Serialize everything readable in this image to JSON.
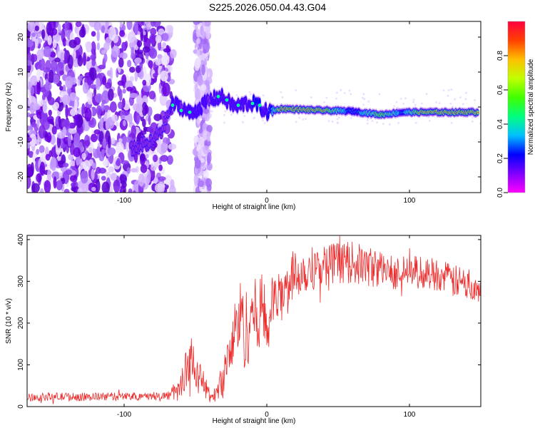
{
  "figure": {
    "title": "S225.2026.050.04.43.G04"
  },
  "colors": {
    "snr_line": "#ee2b2b",
    "axis": "#000000",
    "background": "#ffffff",
    "colormap": [
      "#ffffff",
      "#f0e0ff",
      "#c89cff",
      "#8a2be2",
      "#4b00ff",
      "#0000ff",
      "#00c8ff",
      "#00ff80",
      "#c8ff00",
      "#ffd000",
      "#ff4040",
      "#ff0060"
    ]
  },
  "chart_data": [
    {
      "type": "heatmap",
      "title": "S225.2026.050.04.43.G04",
      "xlabel": "Height of straight line (km)",
      "ylabel": "Frequency (Hz)",
      "xlim": [
        -168,
        150
      ],
      "ylim": [
        -24.5,
        24.5
      ],
      "xticks": [
        -100,
        0,
        100
      ],
      "xtick_labels": [
        "-100",
        "0",
        "100"
      ],
      "yticks": [
        -20,
        -10,
        0,
        10,
        20
      ],
      "ytick_labels": [
        "-20",
        "-10",
        "0",
        "10",
        "20"
      ],
      "colorbar": {
        "label": "Normalized spectral amplitude",
        "range": [
          0.0,
          1.0
        ],
        "ticks": [
          0.0,
          0.2,
          0.4,
          0.6,
          0.8
        ],
        "tick_labels": [
          "0.0",
          "0.2",
          "0.4",
          "0.6",
          "0.8"
        ]
      },
      "ridge_points": [
        {
          "x": -95,
          "y": -12,
          "amp": 0.3
        },
        {
          "x": -80,
          "y": -10,
          "amp": 0.25
        },
        {
          "x": -72,
          "y": -5,
          "amp": 0.2
        },
        {
          "x": -66,
          "y": 1,
          "amp": 0.35
        },
        {
          "x": -60,
          "y": 0,
          "amp": 0.3
        },
        {
          "x": -53,
          "y": -2,
          "amp": 0.35
        },
        {
          "x": -40,
          "y": 2,
          "amp": 0.3
        },
        {
          "x": -32,
          "y": 3,
          "amp": 0.45
        },
        {
          "x": -22,
          "y": 0,
          "amp": 0.35
        },
        {
          "x": -15,
          "y": 1,
          "amp": 0.4
        },
        {
          "x": -8,
          "y": 1,
          "amp": 0.5
        },
        {
          "x": 0,
          "y": -1.5,
          "amp": 0.45
        },
        {
          "x": 10,
          "y": -0.5,
          "amp": 0.95
        },
        {
          "x": 40,
          "y": -1,
          "amp": 0.9
        },
        {
          "x": 60,
          "y": -1.2,
          "amp": 0.55
        },
        {
          "x": 80,
          "y": -2.2,
          "amp": 0.85
        },
        {
          "x": 95,
          "y": -1.5,
          "amp": 0.6
        },
        {
          "x": 110,
          "y": -1.5,
          "amp": 0.95
        },
        {
          "x": 148,
          "y": -1.5,
          "amp": 0.95
        }
      ]
    },
    {
      "type": "line",
      "xlabel": "Height of straight line (km)",
      "ylabel": "SNR (10 * v/v)",
      "xlim": [
        -168,
        150
      ],
      "ylim": [
        0,
        410
      ],
      "xticks": [
        -100,
        0,
        100
      ],
      "xtick_labels": [
        "-100",
        "0",
        "100"
      ],
      "yticks": [
        0,
        100,
        200,
        300,
        400
      ],
      "ytick_labels": [
        "0",
        "100",
        "200",
        "300",
        "400"
      ],
      "series": [
        {
          "name": "SNR",
          "x": [
            -168,
            -150,
            -130,
            -110,
            -90,
            -70,
            -62,
            -58,
            -55,
            -50,
            -46,
            -42,
            -38,
            -30,
            -26,
            -22,
            -18,
            -15,
            -10,
            -7,
            -4,
            0,
            5,
            10,
            15,
            20,
            30,
            40,
            50,
            60,
            70,
            80,
            90,
            100,
            110,
            120,
            130,
            140,
            150
          ],
          "y": [
            22,
            24,
            23,
            24,
            25,
            26,
            35,
            75,
            110,
            95,
            65,
            40,
            18,
            75,
            130,
            180,
            230,
            170,
            240,
            200,
            250,
            190,
            260,
            260,
            300,
            320,
            330,
            340,
            345,
            345,
            335,
            330,
            320,
            325,
            320,
            318,
            300,
            295,
            290
          ],
          "noise": [
            10,
            10,
            10,
            10,
            10,
            10,
            25,
            45,
            50,
            45,
            35,
            25,
            12,
            45,
            60,
            90,
            80,
            110,
            80,
            100,
            80,
            90,
            60,
            60,
            60,
            60,
            55,
            50,
            50,
            50,
            50,
            45,
            40,
            40,
            40,
            40,
            40,
            40,
            40
          ]
        }
      ]
    }
  ]
}
